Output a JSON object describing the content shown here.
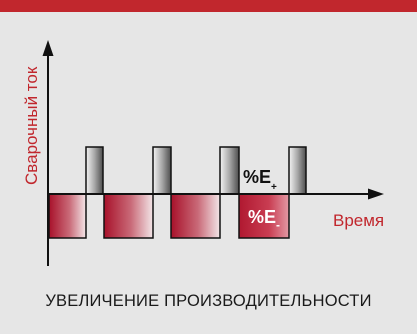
{
  "theme": {
    "accent": "#c1272d",
    "negative_pulse": "#a8112a",
    "positive_pulse": "#6b6b6b",
    "axis": "#111111",
    "background": "#e6e6e6"
  },
  "diagram": {
    "y_axis_label": "Сварочный ток",
    "x_axis_label": "Время",
    "positive_label": {
      "main": "%E",
      "sub": "+"
    },
    "negative_label": {
      "main": "%E",
      "sub": "-"
    }
  },
  "caption": "УВЕЛИЧЕНИЕ ПРОИЗВОДИТЕЛЬНОСТИ"
}
